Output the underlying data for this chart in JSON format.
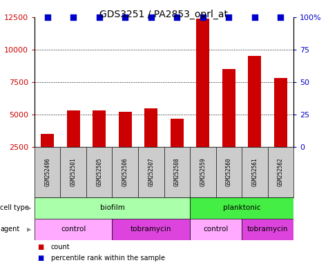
{
  "title": "GDS3251 / PA2853_oprl_at",
  "samples": [
    "GSM252496",
    "GSM252501",
    "GSM252505",
    "GSM252506",
    "GSM252507",
    "GSM252508",
    "GSM252559",
    "GSM252560",
    "GSM252561",
    "GSM252562"
  ],
  "counts": [
    3500,
    5300,
    5300,
    5200,
    5500,
    4700,
    12400,
    8500,
    9500,
    7800
  ],
  "bar_color": "#cc0000",
  "dot_color": "#0000cc",
  "ylim_left": [
    2500,
    12500
  ],
  "ylim_right": [
    0,
    100
  ],
  "yticks_left": [
    2500,
    5000,
    7500,
    10000,
    12500
  ],
  "yticks_right": [
    0,
    25,
    50,
    75,
    100
  ],
  "ytick_labels_right": [
    "0",
    "25",
    "50",
    "75",
    "100%"
  ],
  "cell_type_groups": [
    {
      "label": "biofilm",
      "start": 0,
      "end": 5,
      "color": "#aaffaa"
    },
    {
      "label": "planktonic",
      "start": 6,
      "end": 9,
      "color": "#44ee44"
    }
  ],
  "agent_groups": [
    {
      "label": "control",
      "start": 0,
      "end": 2,
      "color": "#ffaaff"
    },
    {
      "label": "tobramycin",
      "start": 3,
      "end": 5,
      "color": "#dd44dd"
    },
    {
      "label": "control",
      "start": 6,
      "end": 7,
      "color": "#ffaaff"
    },
    {
      "label": "tobramycin",
      "start": 8,
      "end": 9,
      "color": "#dd44dd"
    }
  ],
  "bar_width": 0.5,
  "dot_size": 40,
  "sample_label_bg": "#cccccc",
  "tick_label_color_left": "#cc0000",
  "tick_label_color_right": "#0000cc"
}
